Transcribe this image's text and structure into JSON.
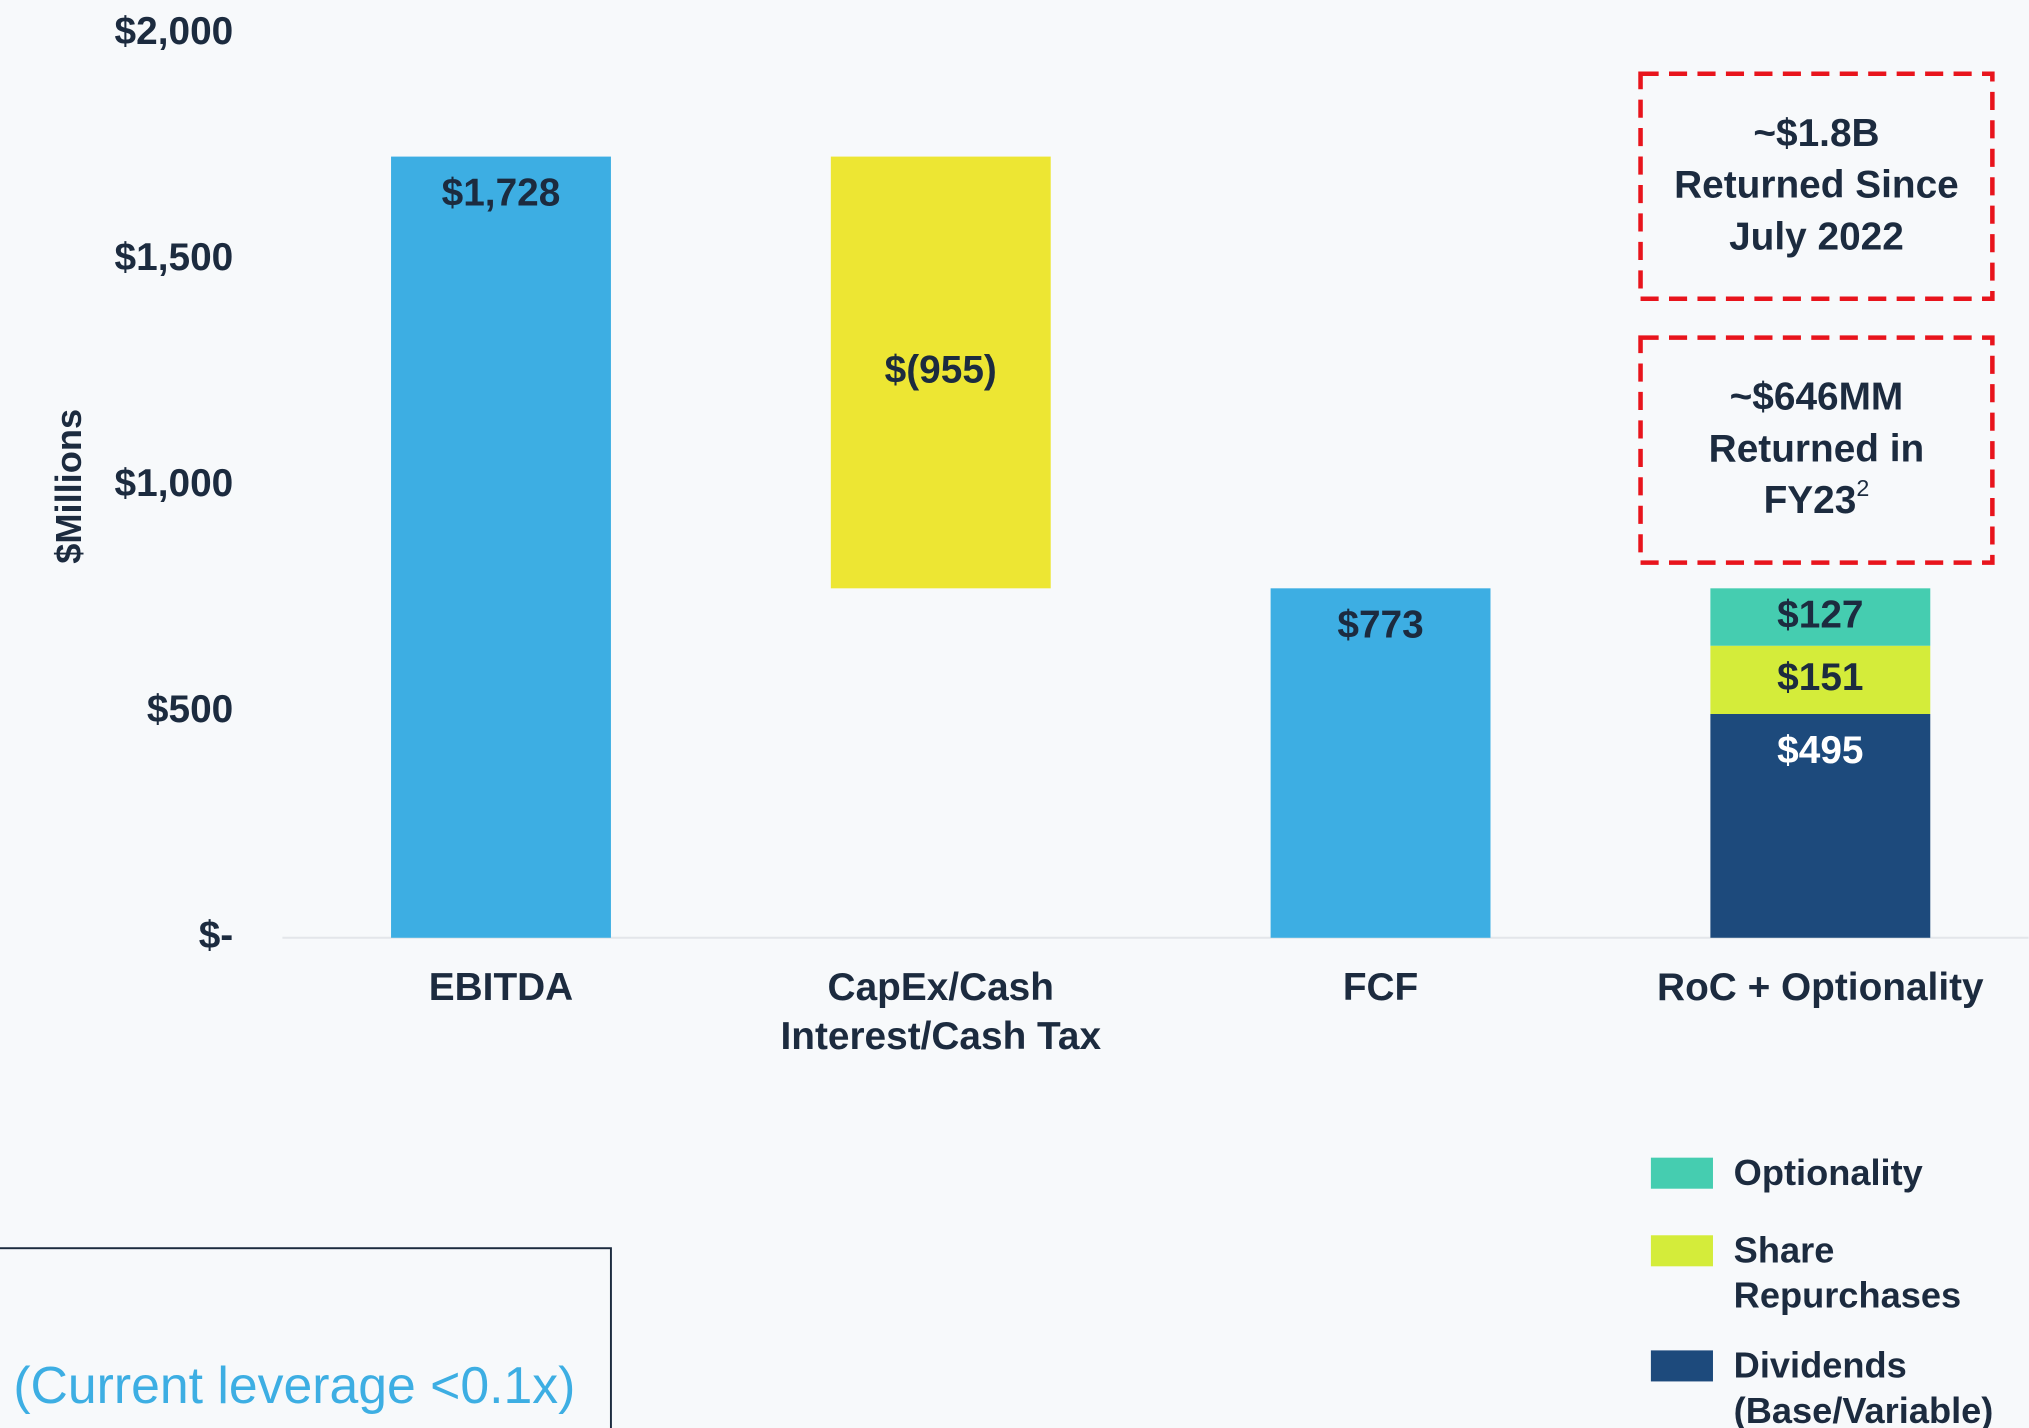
{
  "chart_data": {
    "type": "waterfall",
    "y_label": "$Millions",
    "ylim": [
      0,
      2000
    ],
    "yticks": [
      {
        "value": 0,
        "label": "$-"
      },
      {
        "value": 500,
        "label": "$500"
      },
      {
        "value": 1000,
        "label": "$1,000"
      },
      {
        "value": 1500,
        "label": "$1,500"
      },
      {
        "value": 2000,
        "label": "$2,000"
      }
    ],
    "steps": [
      {
        "category": [
          "EBITDA"
        ],
        "kind": "total",
        "value": 1728,
        "value_label": "$1,728",
        "color": "#3daee3"
      },
      {
        "category": [
          "CapEx/Cash",
          "Interest/Cash Tax"
        ],
        "kind": "delta",
        "value": -955,
        "value_label": "$(955)",
        "color": "#ede633"
      },
      {
        "category": [
          "FCF"
        ],
        "kind": "total",
        "value": 773,
        "value_label": "$773",
        "color": "#3daee3"
      },
      {
        "category": [
          "RoC + Optionality"
        ],
        "kind": "stack",
        "series": [
          {
            "name": "Dividends (Base/Variable)",
            "value": 495,
            "value_label": "$495",
            "color": "#1d4a7c",
            "label_color": "#ffffff"
          },
          {
            "name": "Share Repurchases",
            "value": 151,
            "value_label": "$151",
            "color": "#d4ec3a",
            "label_color": "#1c2b3f"
          },
          {
            "name": "Optionality",
            "value": 127,
            "value_label": "$127",
            "color": "#45cdb0",
            "label_color": "#1c2b3f"
          }
        ]
      }
    ],
    "annotations": [
      {
        "lines": [
          "~$1.8B",
          "Returned Since",
          "July 2022"
        ]
      },
      {
        "lines": [
          "~$646MM",
          "Returned in",
          "FY23"
        ],
        "superscript": "2"
      }
    ],
    "note": "(Current leverage <0.1x)"
  }
}
